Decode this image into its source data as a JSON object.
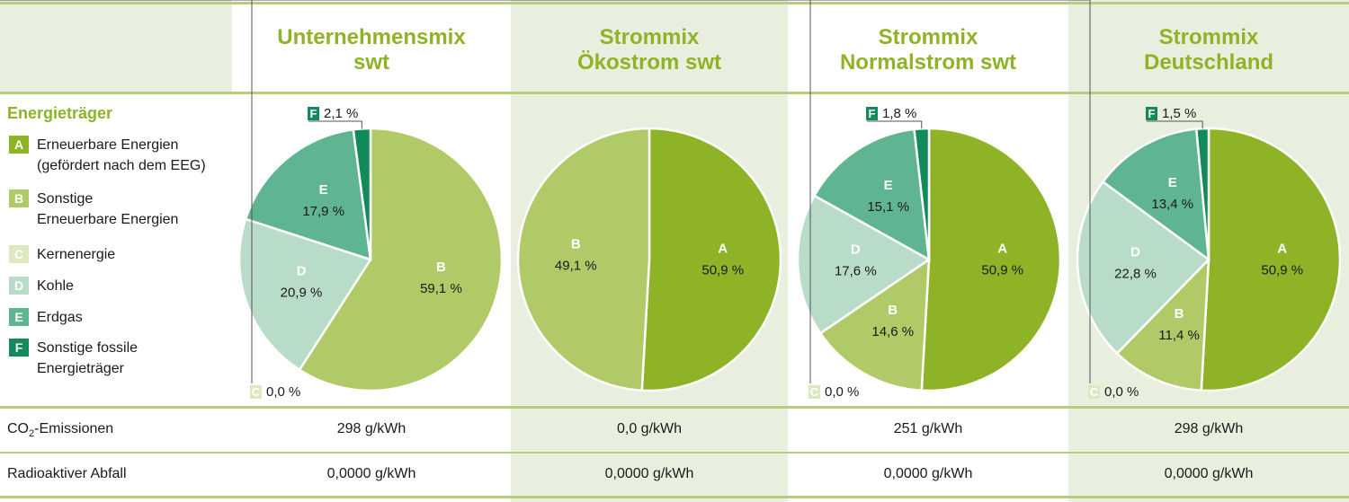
{
  "colors": {
    "A": "#8eb326",
    "B": "#b0ca68",
    "C": "#dde8c0",
    "D": "#b9dcc9",
    "E": "#5fb592",
    "F": "#138a5a",
    "band": "#e9efdf",
    "rule": "#b7cc7e",
    "title": "#8eb326"
  },
  "columns": [
    {
      "title_line1": "Unternehmensmix",
      "title_line2": "swt"
    },
    {
      "title_line1": "Strommix",
      "title_line2": "Ökostrom swt"
    },
    {
      "title_line1": "Strommix",
      "title_line2": "Normalstrom swt"
    },
    {
      "title_line1": "Strommix",
      "title_line2": "Deutschland"
    }
  ],
  "legend": {
    "title": "Energieträger",
    "items": [
      {
        "letter": "A",
        "line1": "Erneuerbare Energien",
        "line2": "(gefördert nach dem EEG)"
      },
      {
        "letter": "B",
        "line1": "Sonstige",
        "line2": "Erneuerbare Energien"
      },
      {
        "letter": "C",
        "line1": "Kernenergie",
        "line2": ""
      },
      {
        "letter": "D",
        "line1": "Kohle",
        "line2": ""
      },
      {
        "letter": "E",
        "line1": "Erdgas",
        "line2": ""
      },
      {
        "letter": "F",
        "line1": "Sonstige fossile",
        "line2": "Energieträger"
      }
    ]
  },
  "rows": {
    "co2_label_main": "CO",
    "co2_label_sub": "2",
    "co2_label_rest": "-Emissionen",
    "co2_values": [
      "298 g/kWh",
      "0,0 g/kWh",
      "251 g/kWh",
      "298 g/kWh"
    ],
    "waste_label": "Radioaktiver Abfall",
    "waste_values": [
      "0,0000 g/kWh",
      "0,0000 g/kWh",
      "0,0000 g/kWh",
      "0,0000 g/kWh"
    ]
  },
  "chart_data": [
    {
      "type": "pie",
      "title": "Unternehmensmix swt",
      "slices": [
        {
          "label": "A",
          "value": 0.0,
          "text": ""
        },
        {
          "label": "B",
          "value": 59.1,
          "text": "59,1 %"
        },
        {
          "label": "C",
          "value": 0.0,
          "text": "0,0 %"
        },
        {
          "label": "D",
          "value": 20.9,
          "text": "20,9 %"
        },
        {
          "label": "E",
          "value": 17.9,
          "text": "17,9 %"
        },
        {
          "label": "F",
          "value": 2.1,
          "text": "2,1 %"
        }
      ]
    },
    {
      "type": "pie",
      "title": "Strommix Ökostrom swt",
      "slices": [
        {
          "label": "A",
          "value": 50.9,
          "text": "50,9 %"
        },
        {
          "label": "B",
          "value": 49.1,
          "text": "49,1 %"
        }
      ]
    },
    {
      "type": "pie",
      "title": "Strommix Normalstrom swt",
      "slices": [
        {
          "label": "A",
          "value": 50.9,
          "text": "50,9 %"
        },
        {
          "label": "B",
          "value": 14.6,
          "text": "14,6 %"
        },
        {
          "label": "C",
          "value": 0.0,
          "text": "0,0 %"
        },
        {
          "label": "D",
          "value": 17.6,
          "text": "17,6 %"
        },
        {
          "label": "E",
          "value": 15.1,
          "text": "15,1 %"
        },
        {
          "label": "F",
          "value": 1.8,
          "text": "1,8 %"
        }
      ]
    },
    {
      "type": "pie",
      "title": "Strommix Deutschland",
      "slices": [
        {
          "label": "A",
          "value": 50.9,
          "text": "50,9 %"
        },
        {
          "label": "B",
          "value": 11.4,
          "text": "11,4 %"
        },
        {
          "label": "C",
          "value": 0.0,
          "text": "0,0 %"
        },
        {
          "label": "D",
          "value": 22.8,
          "text": "22,8 %"
        },
        {
          "label": "E",
          "value": 13.4,
          "text": "13,4 %"
        },
        {
          "label": "F",
          "value": 1.5,
          "text": "1,5 %"
        }
      ]
    }
  ]
}
